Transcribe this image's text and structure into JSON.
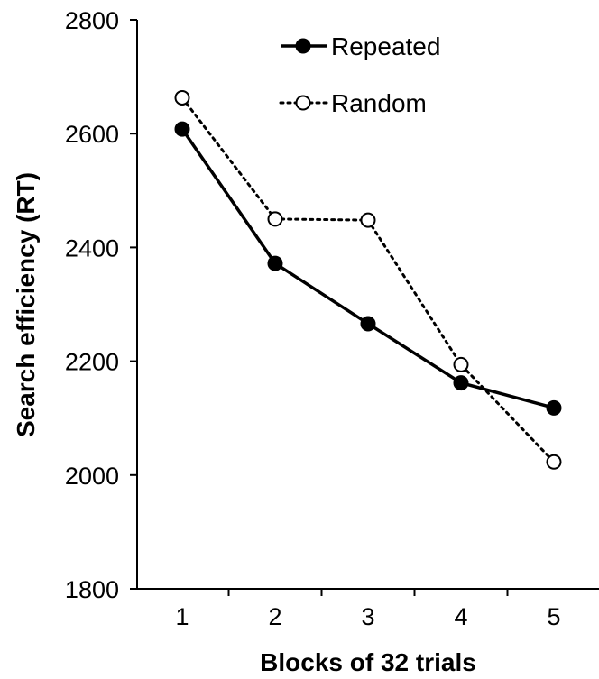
{
  "chart_data": {
    "type": "line",
    "title": "",
    "xlabel": "Blocks of 32 trials",
    "ylabel": "Search efficiency (RT)",
    "categories": [
      "1",
      "2",
      "3",
      "4",
      "5"
    ],
    "ylim": [
      1800,
      2800
    ],
    "yticks": [
      "1800",
      "2000",
      "2200",
      "2400",
      "2600",
      "2800"
    ],
    "grid": false,
    "legend_position": "top-center",
    "series": [
      {
        "name": "Repeated",
        "values": [
          2608,
          2372,
          2266,
          2162,
          2118
        ],
        "line_style": "solid",
        "marker": "filled-circle",
        "color": "#000000"
      },
      {
        "name": "Random",
        "values": [
          2663,
          2450,
          2448,
          2194,
          2023
        ],
        "line_style": "dotted",
        "marker": "open-circle",
        "color": "#000000"
      }
    ]
  }
}
